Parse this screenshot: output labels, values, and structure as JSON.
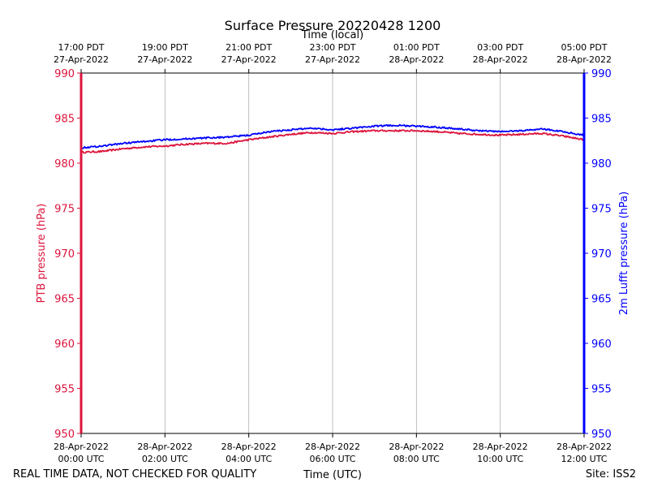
{
  "chart_data": {
    "type": "line",
    "title": "Surface Pressure 20220428 1200",
    "top_axis_label": "Time (local)",
    "xlabel": "Time (UTC)",
    "ylabel_left": "PTB pressure (hPa)",
    "ylabel_right": "2m Lufft pressure (hPa)",
    "ylim": [
      950,
      990
    ],
    "xlim_hours_utc": [
      0,
      12
    ],
    "grid": "vertical",
    "y_ticks": [
      "990",
      "985",
      "980",
      "975",
      "970",
      "965",
      "960",
      "955",
      "950"
    ],
    "bottom_ticks": [
      {
        "date": "28-Apr-2022",
        "time": "00:00 UTC"
      },
      {
        "date": "28-Apr-2022",
        "time": "02:00 UTC"
      },
      {
        "date": "28-Apr-2022",
        "time": "04:00 UTC"
      },
      {
        "date": "28-Apr-2022",
        "time": "06:00 UTC"
      },
      {
        "date": "28-Apr-2022",
        "time": "08:00 UTC"
      },
      {
        "date": "28-Apr-2022",
        "time": "10:00 UTC"
      },
      {
        "date": "28-Apr-2022",
        "time": "12:00 UTC"
      }
    ],
    "top_ticks": [
      {
        "time": "17:00 PDT",
        "date": "27-Apr-2022"
      },
      {
        "time": "19:00 PDT",
        "date": "27-Apr-2022"
      },
      {
        "time": "21:00 PDT",
        "date": "27-Apr-2022"
      },
      {
        "time": "23:00 PDT",
        "date": "27-Apr-2022"
      },
      {
        "time": "01:00 PDT",
        "date": "28-Apr-2022"
      },
      {
        "time": "03:00 PDT",
        "date": "28-Apr-2022"
      },
      {
        "time": "05:00 PDT",
        "date": "28-Apr-2022"
      }
    ],
    "series": [
      {
        "axis": "left",
        "color": "#dc143c",
        "x": [
          0,
          0.5,
          1,
          1.5,
          2,
          2.5,
          3,
          3.5,
          4,
          4.5,
          5,
          5.5,
          6,
          6.5,
          7,
          7.5,
          8,
          8.5,
          9,
          9.5,
          10,
          10.5,
          11,
          11.5,
          12
        ],
        "values": [
          981.2,
          981.3,
          981.6,
          981.8,
          981.9,
          982.1,
          982.2,
          982.2,
          982.6,
          982.9,
          983.2,
          983.4,
          983.3,
          983.5,
          983.6,
          983.6,
          983.6,
          983.5,
          983.3,
          983.2,
          983.1,
          983.2,
          983.3,
          983.0,
          982.6
        ]
      },
      {
        "axis": "right",
        "color": "#0000ff",
        "x": [
          0,
          0.5,
          1,
          1.5,
          2,
          2.5,
          3,
          3.5,
          4,
          4.5,
          5,
          5.5,
          6,
          6.5,
          7,
          7.5,
          8,
          8.5,
          9,
          9.5,
          10,
          10.5,
          11,
          11.5,
          12
        ],
        "values": [
          981.7,
          981.9,
          982.2,
          982.4,
          982.6,
          982.7,
          982.8,
          982.9,
          983.1,
          983.5,
          983.7,
          983.9,
          983.7,
          983.9,
          984.1,
          984.2,
          984.1,
          984.0,
          983.8,
          983.6,
          983.5,
          983.6,
          983.8,
          983.5,
          983.1
        ]
      }
    ]
  },
  "footer": {
    "left_note": "REAL TIME DATA, NOT CHECKED FOR QUALITY",
    "site": "Site: ISS2"
  },
  "colors": {
    "left_axis": "#dc143c",
    "right_axis": "#0000ff",
    "grid": "#b0b0b0"
  }
}
